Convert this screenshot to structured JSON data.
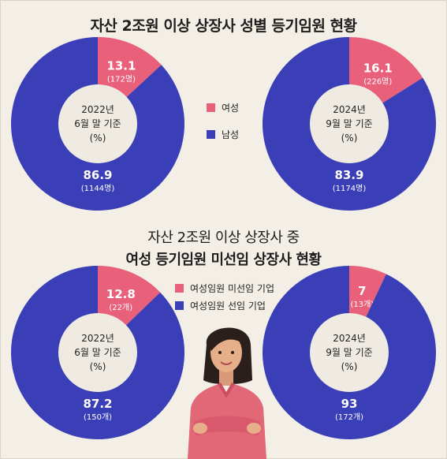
{
  "title_1_prefix": "자산 2조원 이상 상장사 ",
  "title_1_emph": "성별 등기임원 현황",
  "title_2_line1": "자산 2조원 이상 상장사 중",
  "title_2_line2": "여성 등기임원 미선임 상장사 현황",
  "colors": {
    "red": "#e8607a",
    "blue": "#3a3fb8",
    "center": "#efeae2"
  },
  "legend_1": [
    {
      "label": "여성",
      "color": "#e8607a"
    },
    {
      "label": "남성",
      "color": "#3a3fb8"
    }
  ],
  "legend_2": [
    {
      "label": "여성임원 미선임 기업",
      "color": "#e8607a"
    },
    {
      "label": "여성임원 선임 기업",
      "color": "#3a3fb8"
    }
  ],
  "chart_data": [
    {
      "type": "pie",
      "center_label": [
        "2022년",
        "6월 말 기준",
        "(%)"
      ],
      "slices": [
        {
          "name": "여성",
          "value": 13.1,
          "value_label": "13.1",
          "sub_label": "(172명)"
        },
        {
          "name": "남성",
          "value": 86.9,
          "value_label": "86.9",
          "sub_label": "(1144명)"
        }
      ]
    },
    {
      "type": "pie",
      "center_label": [
        "2024년",
        "9월 말 기준",
        "(%)"
      ],
      "slices": [
        {
          "name": "여성",
          "value": 16.1,
          "value_label": "16.1",
          "sub_label": "(226명)"
        },
        {
          "name": "남성",
          "value": 83.9,
          "value_label": "83.9",
          "sub_label": "(1174명)"
        }
      ]
    },
    {
      "type": "pie",
      "center_label": [
        "2022년",
        "6월 말 기준",
        "(%)"
      ],
      "slices": [
        {
          "name": "여성임원 미선임 기업",
          "value": 12.8,
          "value_label": "12.8",
          "sub_label": "(22개)"
        },
        {
          "name": "여성임원 선임 기업",
          "value": 87.2,
          "value_label": "87.2",
          "sub_label": "(150개)"
        }
      ]
    },
    {
      "type": "pie",
      "center_label": [
        "2024년",
        "9월 말 기준",
        "(%)"
      ],
      "slices": [
        {
          "name": "여성임원 미선임 기업",
          "value": 7,
          "value_label": "7",
          "sub_label": "(13개)"
        },
        {
          "name": "여성임원 선임 기업",
          "value": 93,
          "value_label": "93",
          "sub_label": "(172개)"
        }
      ]
    }
  ]
}
